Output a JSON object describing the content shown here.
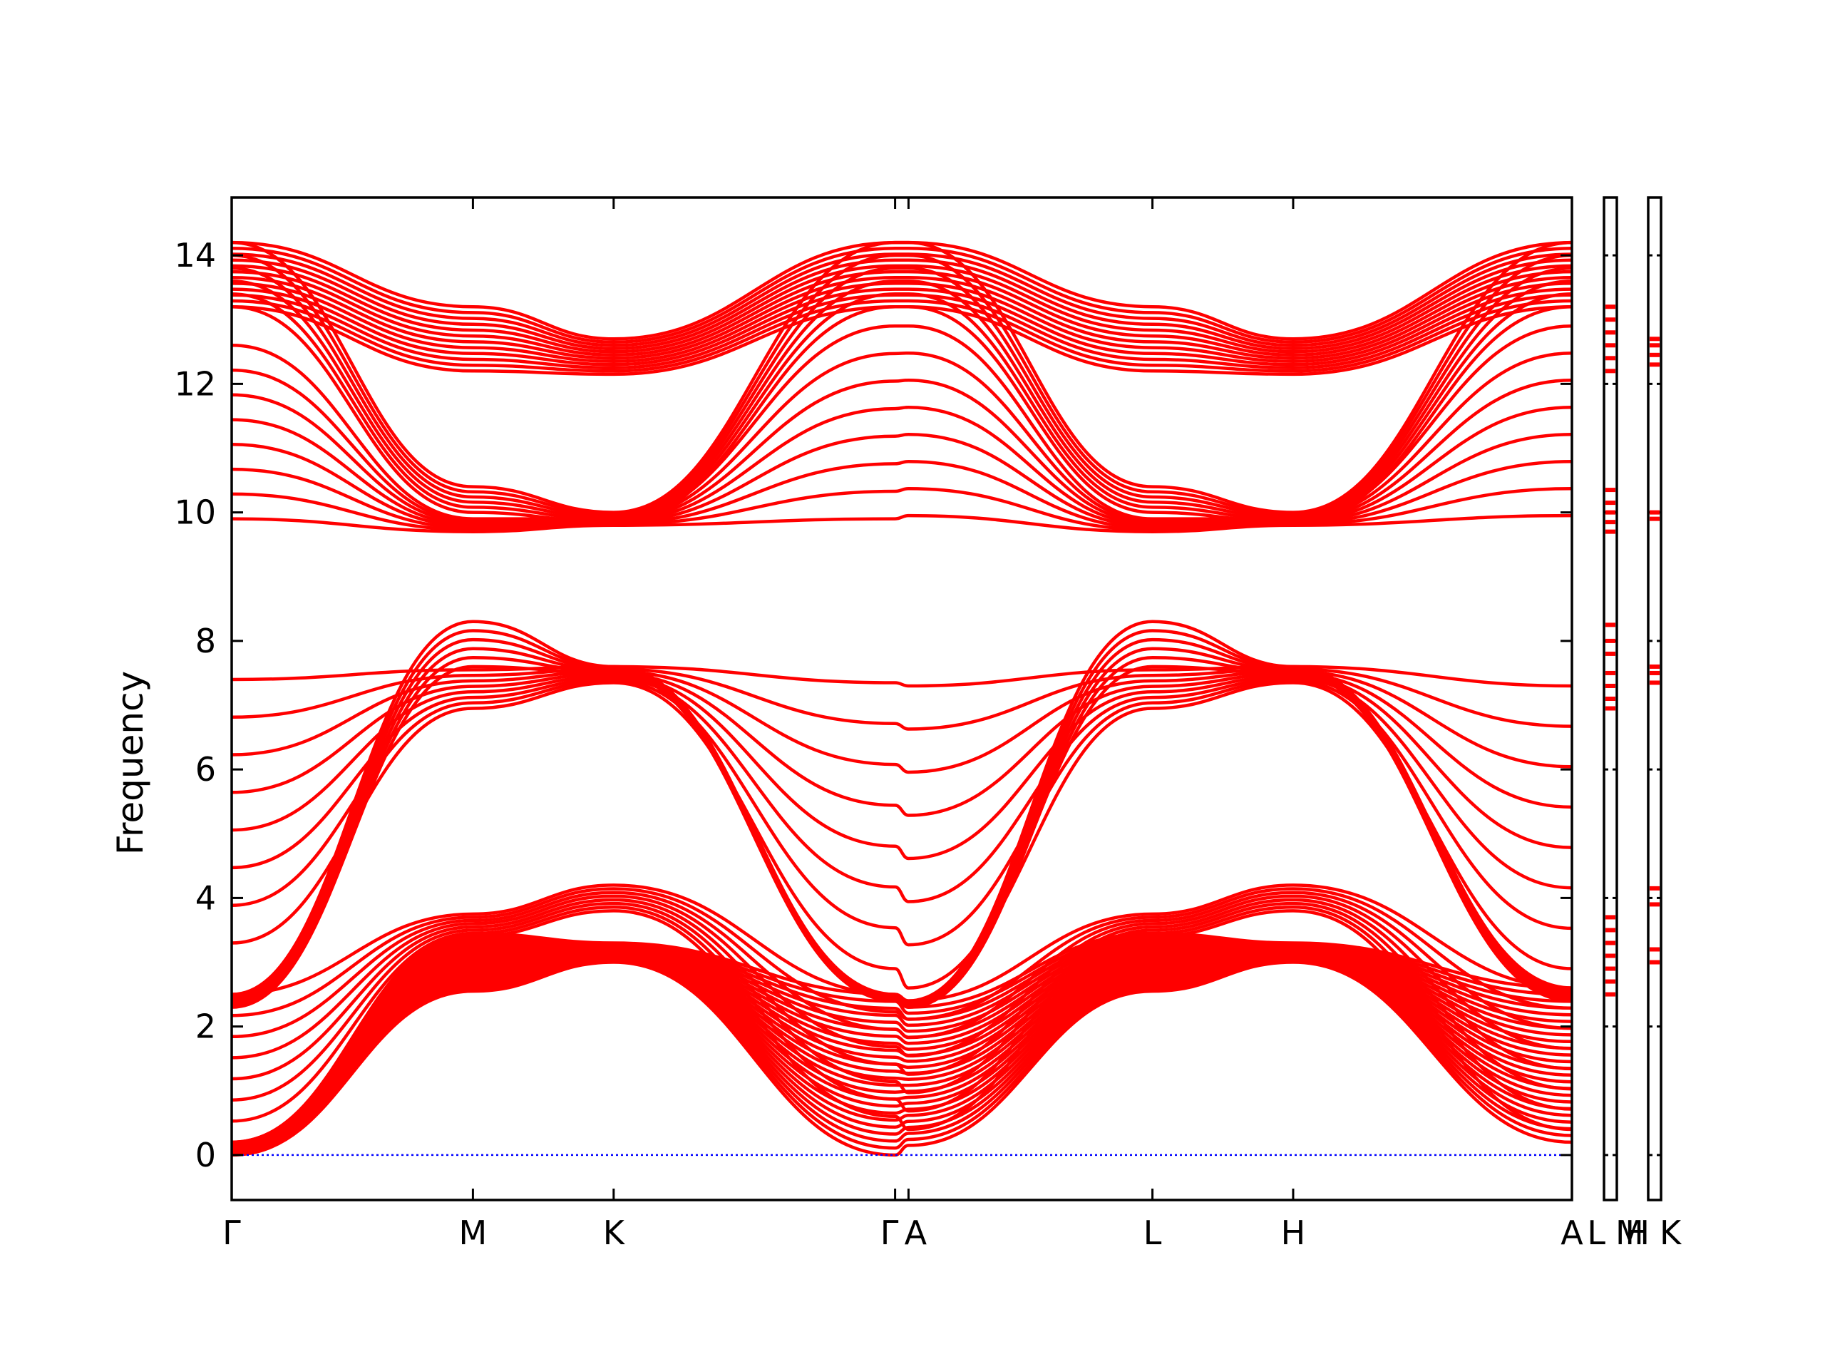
{
  "chart_data": {
    "type": "line",
    "title": "",
    "xlabel": "",
    "ylabel": "Frequency",
    "ylim": [
      -0.7,
      14.9
    ],
    "y_ticks": [
      0,
      2,
      4,
      6,
      8,
      10,
      12,
      14
    ],
    "grid": false,
    "legend": "none",
    "line_color": "#ff0000",
    "zero_line_color": "#0000ff",
    "x_ticks": [
      {
        "label": "Γ",
        "x": 0.0
      },
      {
        "label": "M",
        "x": 0.18
      },
      {
        "label": "K",
        "x": 0.285
      },
      {
        "label": "Γ",
        "x": 0.495
      },
      {
        "label": "A",
        "x": 0.505
      },
      {
        "label": "L",
        "x": 0.687
      },
      {
        "label": "H",
        "x": 0.792
      },
      {
        "label": "A",
        "x": 1.0
      }
    ],
    "side_panels": [
      {
        "labels": [
          "L",
          "M"
        ],
        "levels": [
          2.5,
          2.7,
          2.9,
          3.1,
          3.3,
          3.5,
          3.7,
          6.95,
          7.1,
          7.3,
          7.5,
          7.8,
          8.0,
          8.25,
          9.7,
          9.85,
          10.0,
          10.15,
          10.35,
          12.2,
          12.4,
          12.6,
          12.8,
          13.0,
          13.2
        ]
      },
      {
        "labels": [
          "H",
          "K"
        ],
        "levels": [
          3.0,
          3.2,
          3.9,
          4.15,
          7.35,
          7.5,
          7.6,
          9.9,
          10.0,
          12.3,
          12.45,
          12.6,
          12.7
        ]
      }
    ],
    "band_groups": [
      {
        "name": "",
        "count": 24,
        "nodes": [
          [
            0,
            0,
            0.0
          ],
          [
            0,
            1,
            0.2
          ],
          [
            0.18,
            0,
            2.55
          ],
          [
            0.18,
            1,
            3.45
          ],
          [
            0.285,
            0,
            3.0
          ],
          [
            0.285,
            1,
            3.3
          ],
          [
            0.495,
            0,
            0.0
          ],
          [
            0.495,
            1,
            2.5
          ],
          [
            0.505,
            0,
            0.15
          ],
          [
            0.505,
            1,
            2.3
          ],
          [
            0.687,
            0,
            2.55
          ],
          [
            0.687,
            1,
            3.45
          ],
          [
            0.792,
            0,
            3.0
          ],
          [
            0.792,
            1,
            3.3
          ],
          [
            1,
            0,
            0.2
          ],
          [
            1,
            1,
            2.6
          ]
        ]
      },
      {
        "name": "",
        "count": 8,
        "nodes": [
          [
            0,
            0,
            0.2
          ],
          [
            0,
            1,
            2.5
          ],
          [
            0.18,
            0,
            3.4
          ],
          [
            0.18,
            1,
            3.75
          ],
          [
            0.285,
            0,
            3.8
          ],
          [
            0.285,
            1,
            4.2
          ],
          [
            0.495,
            0,
            0.6
          ],
          [
            0.495,
            1,
            2.5
          ],
          [
            0.505,
            0,
            0.4
          ],
          [
            0.505,
            1,
            2.4
          ],
          [
            0.687,
            0,
            3.4
          ],
          [
            0.687,
            1,
            3.75
          ],
          [
            0.792,
            0,
            3.8
          ],
          [
            0.792,
            1,
            4.2
          ],
          [
            1,
            0,
            0.4
          ],
          [
            1,
            1,
            2.6
          ]
        ]
      },
      {
        "name": "",
        "count": 8,
        "nodes": [
          [
            0,
            0,
            3.3
          ],
          [
            0,
            1,
            7.4
          ],
          [
            0.18,
            0,
            6.95
          ],
          [
            0.18,
            1,
            7.55
          ],
          [
            0.285,
            0,
            7.35
          ],
          [
            0.285,
            1,
            7.6
          ],
          [
            0.495,
            0,
            2.9
          ],
          [
            0.495,
            1,
            7.35
          ],
          [
            0.505,
            0,
            2.6
          ],
          [
            0.505,
            1,
            7.3
          ],
          [
            0.687,
            0,
            6.95
          ],
          [
            0.687,
            1,
            7.55
          ],
          [
            0.792,
            0,
            7.35
          ],
          [
            0.792,
            1,
            7.6
          ],
          [
            1,
            0,
            2.9
          ],
          [
            1,
            1,
            7.3
          ]
        ]
      },
      {
        "name": "",
        "count": 6,
        "nodes": [
          [
            0,
            0,
            2.3
          ],
          [
            0,
            1,
            2.5
          ],
          [
            0.18,
            0,
            7.6
          ],
          [
            0.18,
            1,
            8.3
          ],
          [
            0.285,
            0,
            7.5
          ],
          [
            0.285,
            1,
            7.6
          ],
          [
            0.495,
            0,
            2.4
          ],
          [
            0.495,
            1,
            2.5
          ],
          [
            0.505,
            0,
            2.3
          ],
          [
            0.505,
            1,
            2.4
          ],
          [
            0.687,
            0,
            7.6
          ],
          [
            0.687,
            1,
            8.3
          ],
          [
            0.792,
            0,
            7.5
          ],
          [
            0.792,
            1,
            7.6
          ],
          [
            1,
            0,
            2.4
          ],
          [
            1,
            1,
            2.6
          ]
        ]
      },
      {
        "name": "",
        "count": 8,
        "nodes": [
          [
            0,
            0,
            9.9
          ],
          [
            0,
            1,
            12.6
          ],
          [
            0.18,
            0,
            9.7
          ],
          [
            0.18,
            1,
            9.9
          ],
          [
            0.285,
            0,
            9.8
          ],
          [
            0.285,
            1,
            9.9
          ],
          [
            0.495,
            0,
            9.9
          ],
          [
            0.495,
            1,
            12.9
          ],
          [
            0.505,
            0,
            9.95
          ],
          [
            0.505,
            1,
            12.9
          ],
          [
            0.687,
            0,
            9.7
          ],
          [
            0.687,
            1,
            9.9
          ],
          [
            0.792,
            0,
            9.8
          ],
          [
            0.792,
            1,
            9.9
          ],
          [
            1,
            0,
            9.95
          ],
          [
            1,
            1,
            12.9
          ]
        ]
      },
      {
        "name": "",
        "count": 6,
        "nodes": [
          [
            0,
            0,
            13.2
          ],
          [
            0,
            1,
            14.2
          ],
          [
            0.18,
            0,
            10.0
          ],
          [
            0.18,
            1,
            10.4
          ],
          [
            0.285,
            0,
            9.85
          ],
          [
            0.285,
            1,
            10.0
          ],
          [
            0.495,
            0,
            13.2
          ],
          [
            0.495,
            1,
            14.2
          ],
          [
            0.505,
            0,
            13.2
          ],
          [
            0.505,
            1,
            14.2
          ],
          [
            0.687,
            0,
            10.0
          ],
          [
            0.687,
            1,
            10.4
          ],
          [
            0.792,
            0,
            9.85
          ],
          [
            0.792,
            1,
            10.0
          ],
          [
            1,
            0,
            13.2
          ],
          [
            1,
            1,
            14.2
          ]
        ]
      },
      {
        "name": "",
        "count": 12,
        "nodes": [
          [
            0,
            0,
            13.2
          ],
          [
            0,
            1,
            14.2
          ],
          [
            0.18,
            0,
            12.2
          ],
          [
            0.18,
            1,
            13.2
          ],
          [
            0.285,
            0,
            12.15
          ],
          [
            0.285,
            1,
            12.7
          ],
          [
            0.495,
            0,
            13.2
          ],
          [
            0.495,
            1,
            14.2
          ],
          [
            0.505,
            0,
            13.2
          ],
          [
            0.505,
            1,
            14.2
          ],
          [
            0.687,
            0,
            12.2
          ],
          [
            0.687,
            1,
            13.2
          ],
          [
            0.792,
            0,
            12.15
          ],
          [
            0.792,
            1,
            12.7
          ],
          [
            1,
            0,
            13.2
          ],
          [
            1,
            1,
            14.2
          ]
        ]
      }
    ]
  }
}
